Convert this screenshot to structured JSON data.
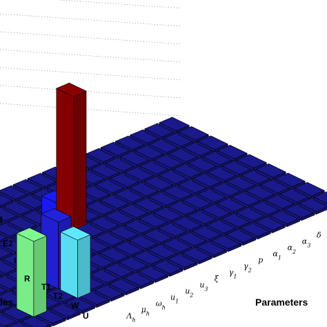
{
  "chart_data": {
    "type": "bar3d",
    "title": "",
    "xlabel": "Parameters",
    "ylabel": "Variables",
    "ylabel_visible_fragment": "les",
    "parameters": [
      "Λ_h",
      "μ_h",
      "ω_h",
      "u_1",
      "u_2",
      "u_3",
      "ξ",
      "γ_1",
      "γ_2",
      "p",
      "α_1",
      "α_2",
      "α_3",
      "δ"
    ],
    "parameter_labels_display": [
      {
        "base": "Λ",
        "sub": "h"
      },
      {
        "base": "μ",
        "sub": "h"
      },
      {
        "base": "ω",
        "sub": "h"
      },
      {
        "base": "u",
        "sub": "1"
      },
      {
        "base": "u",
        "sub": "2"
      },
      {
        "base": "u",
        "sub": "3"
      },
      {
        "base": "ξ",
        "sub": ""
      },
      {
        "base": "γ",
        "sub": "1"
      },
      {
        "base": "γ",
        "sub": "2"
      },
      {
        "base": "p",
        "sub": ""
      },
      {
        "base": "α",
        "sub": "1"
      },
      {
        "base": "α",
        "sub": "2"
      },
      {
        "base": "α",
        "sub": "3"
      },
      {
        "base": "δ",
        "sub": ""
      }
    ],
    "variables_visible": [
      "I",
      "E2",
      "I",
      "R",
      "T1",
      "T2",
      "W",
      "U"
    ],
    "bars": [
      {
        "param": 4,
        "var": 5,
        "value": 0.92,
        "color": "#8b0000"
      },
      {
        "param": 3,
        "var": 5,
        "value": 0.22,
        "color": "#1a1aff"
      },
      {
        "param": -1,
        "var": 2,
        "value": 0.46,
        "color": "#2222dd"
      },
      {
        "param": -1,
        "var": 1,
        "value": 0.4,
        "color": "#5ee8ff"
      },
      {
        "param": -4,
        "var": 1,
        "value": 0.52,
        "color": "#7ffa8f"
      }
    ],
    "base_color": "#1a1a8c",
    "zlim": [
      0,
      1
    ],
    "grid": true
  }
}
